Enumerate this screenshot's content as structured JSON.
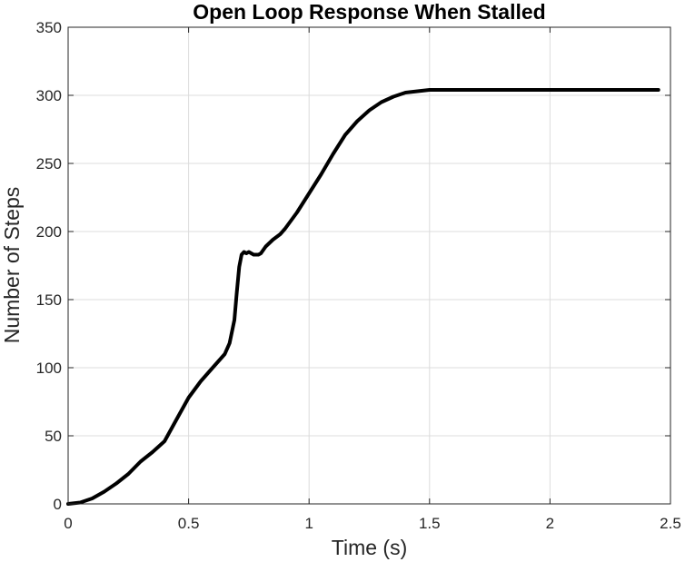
{
  "chart_data": {
    "type": "line",
    "title": "Open Loop Response When Stalled",
    "xlabel": "Time (s)",
    "ylabel": "Number of Steps",
    "xlim": [
      0,
      2.5
    ],
    "ylim": [
      0,
      350
    ],
    "xticks": [
      0,
      0.5,
      1,
      1.5,
      2,
      2.5
    ],
    "xtick_labels": [
      "0",
      "0.5",
      "1",
      "1.5",
      "2",
      "2.5"
    ],
    "yticks": [
      0,
      50,
      100,
      150,
      200,
      250,
      300,
      350
    ],
    "ytick_labels": [
      "0",
      "50",
      "100",
      "150",
      "200",
      "250",
      "300",
      "350"
    ],
    "grid": true,
    "series": [
      {
        "color": "#000000",
        "x": [
          0,
          0.05,
          0.1,
          0.15,
          0.2,
          0.25,
          0.3,
          0.35,
          0.4,
          0.45,
          0.5,
          0.55,
          0.6,
          0.65,
          0.67,
          0.69,
          0.7,
          0.71,
          0.72,
          0.73,
          0.74,
          0.75,
          0.77,
          0.79,
          0.8,
          0.82,
          0.85,
          0.88,
          0.9,
          0.95,
          1.0,
          1.05,
          1.1,
          1.15,
          1.2,
          1.25,
          1.3,
          1.35,
          1.4,
          1.45,
          1.5,
          1.6,
          1.8,
          2.0,
          2.2,
          2.45
        ],
        "y": [
          0,
          1,
          4,
          9,
          15,
          22,
          31,
          38,
          46,
          62,
          78,
          90,
          100,
          110,
          118,
          135,
          155,
          174,
          183,
          185,
          184,
          185,
          183,
          183,
          184,
          189,
          194,
          198,
          202,
          214,
          228,
          242,
          257,
          271,
          281,
          289,
          295,
          299,
          302,
          303,
          304,
          304,
          304,
          304,
          304,
          304
        ]
      }
    ]
  }
}
